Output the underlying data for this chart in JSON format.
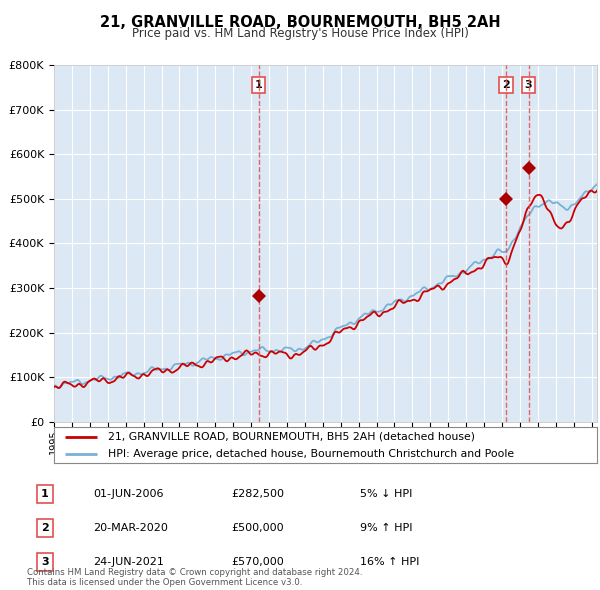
{
  "title": "21, GRANVILLE ROAD, BOURNEMOUTH, BH5 2AH",
  "subtitle": "Price paid vs. HM Land Registry's House Price Index (HPI)",
  "ylim": [
    0,
    800000
  ],
  "xlim_start": 1995.0,
  "xlim_end": 2025.3,
  "plot_bg": "#dce9f5",
  "grid_color": "#ffffff",
  "legend_label_red": "21, GRANVILLE ROAD, BOURNEMOUTH, BH5 2AH (detached house)",
  "legend_label_blue": "HPI: Average price, detached house, Bournemouth Christchurch and Poole",
  "sale_markers": [
    {
      "label": "1",
      "date": 2006.42,
      "price": 282500
    },
    {
      "label": "2",
      "date": 2020.22,
      "price": 500000
    },
    {
      "label": "3",
      "date": 2021.48,
      "price": 570000
    }
  ],
  "sale_table": [
    {
      "num": "1",
      "date": "01-JUN-2006",
      "price": "£282,500",
      "change": "5% ↓ HPI"
    },
    {
      "num": "2",
      "date": "20-MAR-2020",
      "price": "£500,000",
      "change": "9% ↑ HPI"
    },
    {
      "num": "3",
      "date": "24-JUN-2021",
      "price": "£570,000",
      "change": "16% ↑ HPI"
    }
  ],
  "footer": "Contains HM Land Registry data © Crown copyright and database right 2024.\nThis data is licensed under the Open Government Licence v3.0.",
  "red_color": "#cc0000",
  "blue_color": "#7ab0d4",
  "dashed_color": "#e05050",
  "marker_color": "#aa0000"
}
